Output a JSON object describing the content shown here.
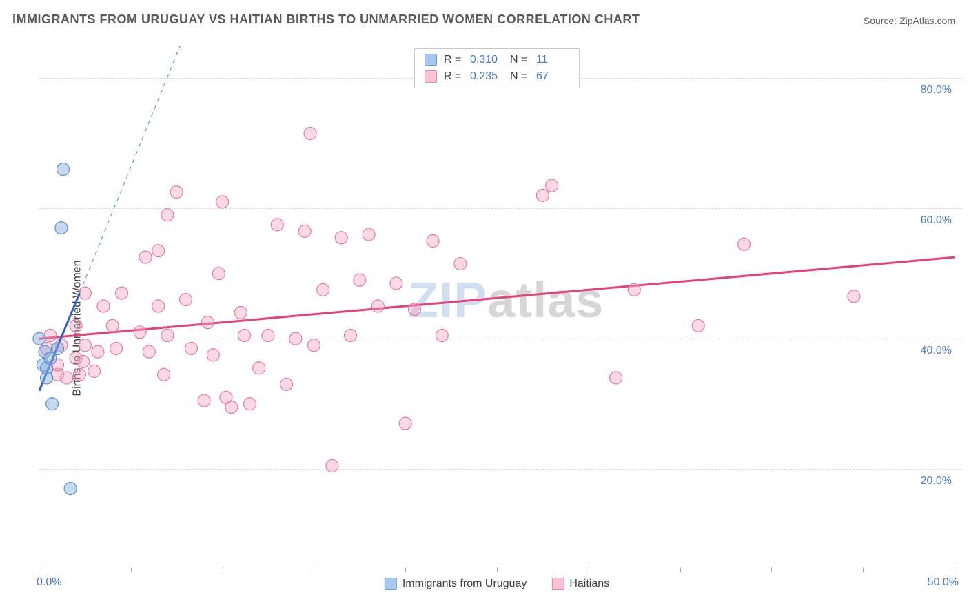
{
  "title": "IMMIGRANTS FROM URUGUAY VS HAITIAN BIRTHS TO UNMARRIED WOMEN CORRELATION CHART",
  "source_prefix": "Source: ",
  "source_name": "ZipAtlas.com",
  "y_axis_label": "Births to Unmarried Women",
  "watermark_a": "ZIP",
  "watermark_b": "atlas",
  "chart": {
    "type": "scatter",
    "background_color": "#ffffff",
    "grid_color": "#d8d8d8",
    "axis_color": "#b0b0b0",
    "tick_label_color": "#4a78c8",
    "tick_fontsize": 16,
    "title_fontsize": 18,
    "xlim": [
      0,
      50
    ],
    "ylim": [
      5,
      85
    ],
    "x_tick_positions": [
      0,
      5,
      10,
      15,
      20,
      25,
      30,
      35,
      40,
      45,
      50
    ],
    "x_tick_labels": {
      "left": "0.0%",
      "right": "50.0%"
    },
    "y_gridlines": [
      20,
      40,
      60,
      80
    ],
    "y_tick_labels": [
      "20.0%",
      "40.0%",
      "60.0%",
      "80.0%"
    ],
    "marker_radius": 9,
    "marker_stroke_width": 1.2,
    "series": [
      {
        "id": "uruguay",
        "label": "Immigrants from Uruguay",
        "fill": "rgba(130,170,225,0.45)",
        "stroke": "#5e8fd0",
        "swatch_fill": "#a9c6ec",
        "swatch_border": "#6a98d2",
        "R_label": "R =",
        "R_value": "0.310",
        "N_label": "N =",
        "N_value": "11",
        "trend": {
          "solid": {
            "x1": 0.0,
            "y1": 32.0,
            "x2": 2.2,
            "y2": 47.0,
            "color": "#2f63c2",
            "width": 3
          },
          "dashed": {
            "x1": 2.2,
            "y1": 47.0,
            "x2": 7.7,
            "y2": 85.0,
            "color": "#6a98d2",
            "width": 1.2,
            "dash": "6,6"
          }
        },
        "points": [
          [
            0.0,
            40.0
          ],
          [
            0.2,
            36.0
          ],
          [
            0.3,
            38.0
          ],
          [
            0.4,
            34.0
          ],
          [
            0.4,
            35.5
          ],
          [
            0.6,
            37.0
          ],
          [
            0.7,
            30.0
          ],
          [
            1.0,
            38.5
          ],
          [
            1.2,
            57.0
          ],
          [
            1.3,
            66.0
          ],
          [
            1.7,
            17.0
          ]
        ]
      },
      {
        "id": "haitians",
        "label": "Haitians",
        "fill": "rgba(250,160,190,0.40)",
        "stroke": "#e47ba0",
        "swatch_fill": "#f7c4d4",
        "swatch_border": "#e684a6",
        "R_label": "R =",
        "R_value": "0.235",
        "N_label": "N =",
        "N_value": "67",
        "trend": {
          "solid": {
            "x1": 0.0,
            "y1": 40.0,
            "x2": 50.0,
            "y2": 52.5,
            "color": "#e9407a",
            "width": 3
          }
        },
        "points": [
          [
            0.4,
            38.5
          ],
          [
            0.6,
            40.5
          ],
          [
            1.0,
            34.5
          ],
          [
            1.0,
            36.0
          ],
          [
            1.2,
            39.0
          ],
          [
            1.5,
            34.0
          ],
          [
            2.0,
            37.0
          ],
          [
            2.0,
            42.0
          ],
          [
            2.2,
            34.5
          ],
          [
            2.4,
            36.5
          ],
          [
            2.5,
            39.0
          ],
          [
            2.5,
            47.0
          ],
          [
            3.0,
            35.0
          ],
          [
            3.2,
            38.0
          ],
          [
            3.5,
            45.0
          ],
          [
            4.0,
            42.0
          ],
          [
            4.2,
            38.5
          ],
          [
            4.5,
            47.0
          ],
          [
            5.5,
            41.0
          ],
          [
            5.8,
            52.5
          ],
          [
            6.0,
            38.0
          ],
          [
            6.5,
            45.0
          ],
          [
            6.5,
            53.5
          ],
          [
            6.8,
            34.5
          ],
          [
            7.0,
            40.5
          ],
          [
            7.0,
            59.0
          ],
          [
            7.5,
            62.5
          ],
          [
            8.0,
            46.0
          ],
          [
            8.3,
            38.5
          ],
          [
            9.0,
            30.5
          ],
          [
            9.2,
            42.5
          ],
          [
            9.5,
            37.5
          ],
          [
            9.8,
            50.0
          ],
          [
            10.0,
            61.0
          ],
          [
            10.2,
            31.0
          ],
          [
            10.5,
            29.5
          ],
          [
            11.0,
            44.0
          ],
          [
            11.2,
            40.5
          ],
          [
            11.5,
            30.0
          ],
          [
            12.0,
            35.5
          ],
          [
            12.5,
            40.5
          ],
          [
            13.0,
            57.5
          ],
          [
            13.5,
            33.0
          ],
          [
            14.0,
            40.0
          ],
          [
            14.5,
            56.5
          ],
          [
            14.8,
            71.5
          ],
          [
            15.0,
            39.0
          ],
          [
            15.5,
            47.5
          ],
          [
            16.0,
            20.5
          ],
          [
            16.5,
            55.5
          ],
          [
            17.0,
            40.5
          ],
          [
            17.5,
            49.0
          ],
          [
            18.0,
            56.0
          ],
          [
            18.5,
            45.0
          ],
          [
            19.5,
            48.5
          ],
          [
            20.0,
            27.0
          ],
          [
            20.5,
            44.5
          ],
          [
            21.5,
            55.0
          ],
          [
            22.0,
            40.5
          ],
          [
            23.0,
            51.5
          ],
          [
            27.5,
            62.0
          ],
          [
            28.0,
            63.5
          ],
          [
            31.5,
            34.0
          ],
          [
            32.5,
            47.5
          ],
          [
            36.0,
            42.0
          ],
          [
            38.5,
            54.5
          ],
          [
            44.5,
            46.5
          ]
        ]
      }
    ],
    "bottom_legend": [
      {
        "series": "uruguay",
        "label": "Immigrants from Uruguay"
      },
      {
        "series": "haitians",
        "label": "Haitians"
      }
    ]
  }
}
